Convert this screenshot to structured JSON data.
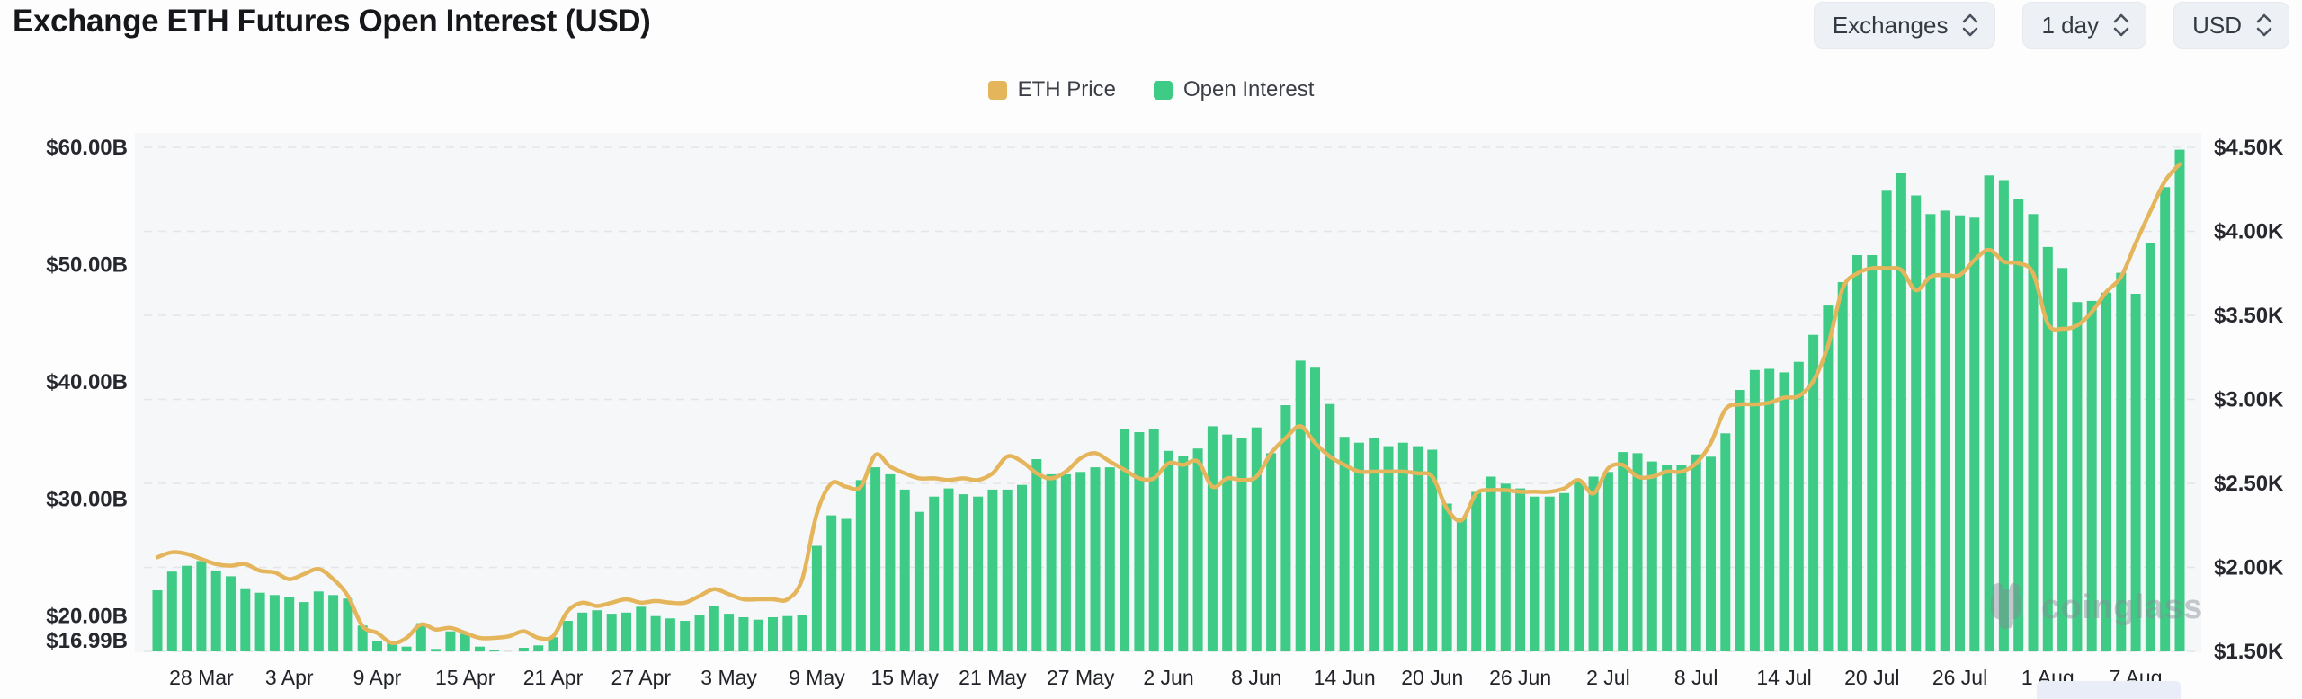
{
  "header": {
    "title": "Exchange ETH Futures Open Interest (USD)",
    "controls": [
      {
        "label": "Exchanges"
      },
      {
        "label": "1 day"
      },
      {
        "label": "USD"
      }
    ]
  },
  "legend": [
    {
      "label": "ETH Price",
      "color": "#e5b55c"
    },
    {
      "label": "Open Interest",
      "color": "#3dcb86"
    }
  ],
  "watermark": {
    "text": "coinglass"
  },
  "colors": {
    "bar": "#3dcb86",
    "line": "#e5b55c",
    "grid": "#e3e5e8",
    "axis_text": "#26282d",
    "plot_background": "#f6f7f8"
  },
  "chart_data": {
    "type": "bar",
    "title": "Exchange ETH Futures Open Interest (USD)",
    "grid": "dashed horizontal",
    "legend_position": "top center",
    "x": [
      "25 Mar",
      "26 Mar",
      "27 Mar",
      "28 Mar",
      "29 Mar",
      "30 Mar",
      "31 Mar",
      "1 Apr",
      "2 Apr",
      "3 Apr",
      "4 Apr",
      "5 Apr",
      "6 Apr",
      "7 Apr",
      "8 Apr",
      "9 Apr",
      "10 Apr",
      "11 Apr",
      "12 Apr",
      "13 Apr",
      "14 Apr",
      "15 Apr",
      "16 Apr",
      "17 Apr",
      "18 Apr",
      "19 Apr",
      "20 Apr",
      "21 Apr",
      "22 Apr",
      "23 Apr",
      "24 Apr",
      "25 Apr",
      "26 Apr",
      "27 Apr",
      "28 Apr",
      "29 Apr",
      "30 Apr",
      "1 May",
      "2 May",
      "3 May",
      "4 May",
      "5 May",
      "6 May",
      "7 May",
      "8 May",
      "9 May",
      "10 May",
      "11 May",
      "12 May",
      "13 May",
      "14 May",
      "15 May",
      "16 May",
      "17 May",
      "18 May",
      "19 May",
      "20 May",
      "21 May",
      "22 May",
      "23 May",
      "24 May",
      "25 May",
      "26 May",
      "27 May",
      "28 May",
      "29 May",
      "30 May",
      "31 May",
      "1 Jun",
      "2 Jun",
      "3 Jun",
      "4 Jun",
      "5 Jun",
      "6 Jun",
      "7 Jun",
      "8 Jun",
      "9 Jun",
      "10 Jun",
      "11 Jun",
      "12 Jun",
      "13 Jun",
      "14 Jun",
      "15 Jun",
      "16 Jun",
      "17 Jun",
      "18 Jun",
      "19 Jun",
      "20 Jun",
      "21 Jun",
      "22 Jun",
      "23 Jun",
      "24 Jun",
      "25 Jun",
      "26 Jun",
      "27 Jun",
      "28 Jun",
      "29 Jun",
      "30 Jun",
      "1 Jul",
      "2 Jul",
      "3 Jul",
      "4 Jul",
      "5 Jul",
      "6 Jul",
      "7 Jul",
      "8 Jul",
      "9 Jul",
      "10 Jul",
      "11 Jul",
      "12 Jul",
      "13 Jul",
      "14 Jul",
      "15 Jul",
      "16 Jul",
      "17 Jul",
      "18 Jul",
      "19 Jul",
      "20 Jul",
      "21 Jul",
      "22 Jul",
      "23 Jul",
      "24 Jul",
      "25 Jul",
      "26 Jul",
      "27 Jul",
      "28 Jul",
      "29 Jul",
      "30 Jul",
      "31 Jul",
      "1 Aug",
      "2 Aug",
      "3 Aug",
      "4 Aug",
      "5 Aug",
      "6 Aug",
      "7 Aug",
      "8 Aug",
      "9 Aug",
      "10 Aug"
    ],
    "series": [
      {
        "name": "Open Interest",
        "type": "bar",
        "axis": "left",
        "unit": "USD billions",
        "color": "#3dcb86",
        "values": [
          22.2,
          23.8,
          24.3,
          24.7,
          23.9,
          23.4,
          22.3,
          22.0,
          21.8,
          21.6,
          21.2,
          22.1,
          21.8,
          21.5,
          19.2,
          17.9,
          17.8,
          17.4,
          19.4,
          17.2,
          18.7,
          18.5,
          17.4,
          17.1,
          17.0,
          17.3,
          17.5,
          18.2,
          19.6,
          20.3,
          20.5,
          20.2,
          20.3,
          20.8,
          20.0,
          19.8,
          19.6,
          20.1,
          20.9,
          20.2,
          19.9,
          19.7,
          19.9,
          20.0,
          20.1,
          26.0,
          28.6,
          28.3,
          31.6,
          32.7,
          32.1,
          30.8,
          28.9,
          30.2,
          30.9,
          30.4,
          30.2,
          30.8,
          30.8,
          31.2,
          33.4,
          32.1,
          32.1,
          32.3,
          32.7,
          32.7,
          36.0,
          35.7,
          36.0,
          34.1,
          33.7,
          34.3,
          36.2,
          35.5,
          35.2,
          36.1,
          33.9,
          38.0,
          41.8,
          41.2,
          38.1,
          35.3,
          34.8,
          35.2,
          34.5,
          34.8,
          34.5,
          34.2,
          29.6,
          28.4,
          30.6,
          31.9,
          31.3,
          30.9,
          30.2,
          30.2,
          30.5,
          31.5,
          31.9,
          32.3,
          34.0,
          33.9,
          33.2,
          32.9,
          32.9,
          33.8,
          33.6,
          35.6,
          39.3,
          41.0,
          41.1,
          40.8,
          41.7,
          44.0,
          46.5,
          48.5,
          50.8,
          50.8,
          56.3,
          57.8,
          55.9,
          54.3,
          54.6,
          54.2,
          54.0,
          57.6,
          57.2,
          55.6,
          54.3,
          51.5,
          49.7,
          46.8,
          46.9,
          47.6,
          49.3,
          47.5,
          51.8,
          56.6,
          59.8
        ]
      },
      {
        "name": "ETH Price",
        "type": "line",
        "axis": "right",
        "unit": "USD thousands",
        "color": "#e5b55c",
        "values": [
          2.06,
          2.09,
          2.08,
          2.05,
          2.02,
          2.01,
          2.02,
          1.98,
          1.97,
          1.93,
          1.96,
          1.99,
          1.93,
          1.83,
          1.65,
          1.61,
          1.55,
          1.58,
          1.66,
          1.63,
          1.64,
          1.61,
          1.58,
          1.58,
          1.59,
          1.62,
          1.58,
          1.59,
          1.74,
          1.79,
          1.77,
          1.79,
          1.81,
          1.79,
          1.8,
          1.79,
          1.79,
          1.83,
          1.87,
          1.84,
          1.81,
          1.81,
          1.81,
          1.81,
          1.93,
          2.32,
          2.5,
          2.48,
          2.48,
          2.67,
          2.6,
          2.56,
          2.53,
          2.53,
          2.52,
          2.53,
          2.52,
          2.56,
          2.66,
          2.63,
          2.56,
          2.53,
          2.57,
          2.65,
          2.68,
          2.63,
          2.58,
          2.53,
          2.53,
          2.62,
          2.61,
          2.63,
          2.48,
          2.53,
          2.52,
          2.54,
          2.68,
          2.77,
          2.84,
          2.74,
          2.66,
          2.61,
          2.57,
          2.57,
          2.57,
          2.57,
          2.56,
          2.54,
          2.35,
          2.28,
          2.44,
          2.46,
          2.46,
          2.45,
          2.45,
          2.45,
          2.47,
          2.52,
          2.44,
          2.59,
          2.61,
          2.54,
          2.54,
          2.57,
          2.57,
          2.62,
          2.74,
          2.94,
          2.97,
          2.97,
          2.98,
          3.01,
          3.02,
          3.11,
          3.32,
          3.66,
          3.75,
          3.78,
          3.78,
          3.77,
          3.65,
          3.73,
          3.74,
          3.74,
          3.83,
          3.89,
          3.82,
          3.81,
          3.75,
          3.45,
          3.42,
          3.44,
          3.52,
          3.64,
          3.73,
          3.93,
          4.12,
          4.3,
          4.4
        ]
      }
    ],
    "left_axis": {
      "tick_labels": [
        "$60.00B",
        "$50.00B",
        "$40.00B",
        "$30.00B",
        "$20.00B",
        "$16.99B"
      ],
      "tick_values": [
        60,
        50,
        40,
        30,
        20,
        16.99
      ],
      "min": 16.99,
      "max": 60
    },
    "right_axis": {
      "tick_labels": [
        "$4.50K",
        "$4.00K",
        "$3.50K",
        "$3.00K",
        "$2.50K",
        "$2.00K",
        "$1.50K"
      ],
      "tick_values": [
        4.5,
        4.0,
        3.5,
        3.0,
        2.5,
        2.0,
        1.5
      ],
      "min": 1.5,
      "max": 4.5
    },
    "x_tick_labels": [
      "28 Mar",
      "3 Apr",
      "9 Apr",
      "15 Apr",
      "21 Apr",
      "27 Apr",
      "3 May",
      "9 May",
      "15 May",
      "21 May",
      "27 May",
      "2 Jun",
      "8 Jun",
      "14 Jun",
      "20 Jun",
      "26 Jun",
      "2 Jul",
      "8 Jul",
      "14 Jul",
      "20 Jul",
      "26 Jul",
      "1 Aug",
      "7 Aug"
    ],
    "x_tick_indices": [
      3,
      9,
      15,
      21,
      27,
      33,
      39,
      45,
      51,
      57,
      63,
      69,
      75,
      81,
      87,
      93,
      99,
      105,
      111,
      117,
      123,
      129,
      135
    ]
  }
}
